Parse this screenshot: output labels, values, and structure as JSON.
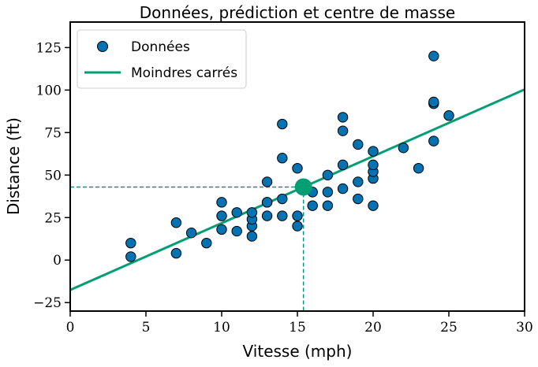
{
  "chart_data": {
    "type": "scatter",
    "title": "Données, prédiction et centre de masse",
    "xlabel": "Vitesse (mph)",
    "ylabel": "Distance (ft)",
    "xlim": [
      0,
      30
    ],
    "ylim": [
      -30,
      140
    ],
    "xticks": [
      0,
      5,
      10,
      15,
      20,
      25,
      30
    ],
    "yticks": [
      -25,
      0,
      25,
      50,
      75,
      100,
      125
    ],
    "xtick_labels": [
      "0",
      "5",
      "10",
      "15",
      "20",
      "25",
      "30"
    ],
    "ytick_labels": [
      "−25",
      "0",
      "25",
      "50",
      "75",
      "100",
      "125"
    ],
    "grid": false,
    "legend_placement": "top-left",
    "legend": [
      "Données",
      "Moindres carrés"
    ],
    "colors": {
      "points": "#0173b2",
      "fit_line": "#029e73",
      "center": "#029e73"
    },
    "series": [
      {
        "name": "Données",
        "kind": "scatter",
        "points": [
          [
            4,
            2
          ],
          [
            4,
            10
          ],
          [
            7,
            4
          ],
          [
            7,
            22
          ],
          [
            8,
            16
          ],
          [
            9,
            10
          ],
          [
            10,
            18
          ],
          [
            10,
            26
          ],
          [
            10,
            34
          ],
          [
            11,
            17
          ],
          [
            11,
            28
          ],
          [
            12,
            14
          ],
          [
            12,
            20
          ],
          [
            12,
            24
          ],
          [
            12,
            28
          ],
          [
            13,
            26
          ],
          [
            13,
            34
          ],
          [
            13,
            34
          ],
          [
            13,
            46
          ],
          [
            14,
            26
          ],
          [
            14,
            36
          ],
          [
            14,
            60
          ],
          [
            14,
            80
          ],
          [
            15,
            20
          ],
          [
            15,
            26
          ],
          [
            15,
            54
          ],
          [
            16,
            32
          ],
          [
            16,
            40
          ],
          [
            17,
            32
          ],
          [
            17,
            40
          ],
          [
            17,
            50
          ],
          [
            18,
            42
          ],
          [
            18,
            56
          ],
          [
            18,
            76
          ],
          [
            18,
            84
          ],
          [
            19,
            36
          ],
          [
            19,
            46
          ],
          [
            19,
            68
          ],
          [
            20,
            32
          ],
          [
            20,
            48
          ],
          [
            20,
            52
          ],
          [
            20,
            56
          ],
          [
            20,
            64
          ],
          [
            22,
            66
          ],
          [
            23,
            54
          ],
          [
            24,
            70
          ],
          [
            24,
            92
          ],
          [
            24,
            93
          ],
          [
            24,
            120
          ],
          [
            25,
            85
          ]
        ]
      },
      {
        "name": "Moindres carrés",
        "kind": "line",
        "points": [
          [
            0,
            -17.58
          ],
          [
            30,
            100.36
          ]
        ]
      }
    ],
    "center_of_mass": [
      15.4,
      42.98
    ]
  }
}
